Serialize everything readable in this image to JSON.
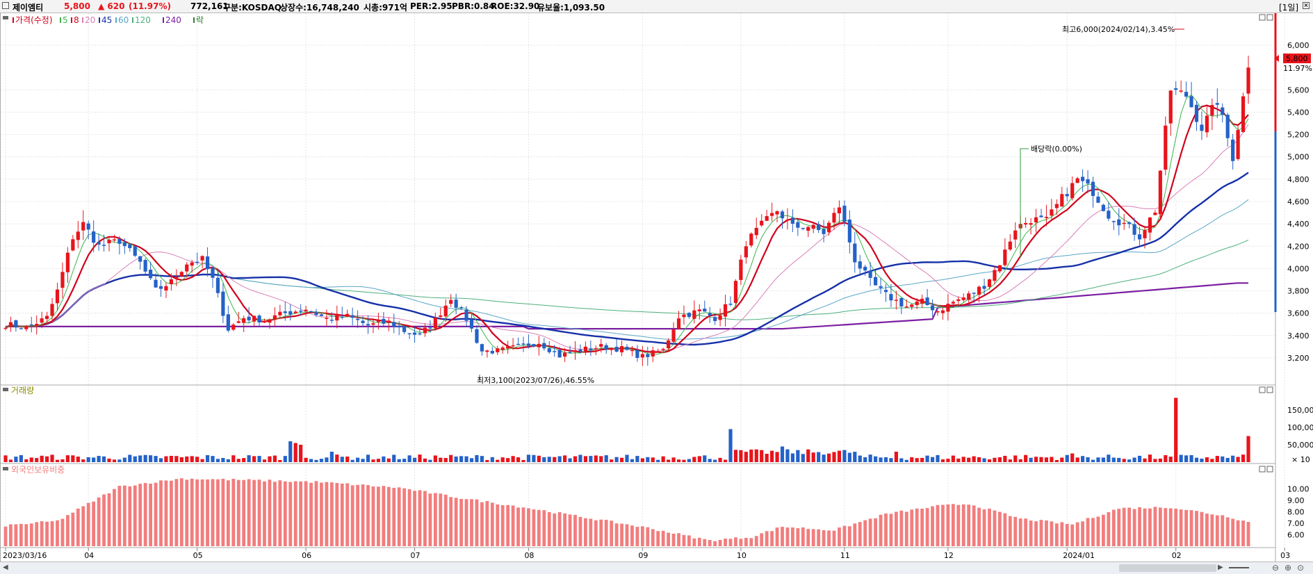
{
  "header": {
    "stock_name": "제이엠티",
    "price": "5,800",
    "change": "▲ 620",
    "change_pct": "(11.97%)",
    "volume": "772,161",
    "market": "구분:KOSDAQ",
    "shares": "상장수:16,748,240",
    "market_cap": "시총:971억",
    "per": "PER:2.95",
    "pbr": "PBR:0.84",
    "roe": "ROE:32.90",
    "reserve": "유보율:1,093.50",
    "period": "[1일]"
  },
  "legends": {
    "price": [
      {
        "label": "가격(수정)",
        "color": "#d0021b"
      },
      {
        "label": "5",
        "color": "#39b54a"
      },
      {
        "label": "8",
        "color": "#d0021b"
      },
      {
        "label": "20",
        "color": "#d97fb8"
      },
      {
        "label": "45",
        "color": "#1530a8"
      },
      {
        "label": "60",
        "color": "#5aa6c8"
      },
      {
        "label": "120",
        "color": "#4caf7d"
      },
      {
        "label": "240",
        "color": "#7b1fa2"
      },
      {
        "label": "락",
        "color": "#2e7d32"
      }
    ],
    "volume": "거래량",
    "foreign": "외국인보유비중"
  },
  "annotations": {
    "high": "최고6,000(2024/02/14),3.45%",
    "low": "최저3,100(2023/07/26),46.55%",
    "dividend": "배당락(0.00%)",
    "last_price": "5,800",
    "last_pct": "11.97%",
    "volume_unit": "× 10"
  },
  "colors": {
    "up": "#e8141c",
    "down": "#2462c8",
    "foreign": "#f27d7d"
  },
  "chart_data": [
    {
      "type": "candlestick",
      "name": "price",
      "ylim": [
        3050,
        6150
      ],
      "y_ticks": [
        "3,200",
        "3,400",
        "3,600",
        "3,800",
        "4,000",
        "4,200",
        "4,400",
        "4,600",
        "4,800",
        "5,000",
        "5,200",
        "5,400",
        "5,600",
        "6,000"
      ],
      "y_tick_values": [
        3200,
        3400,
        3600,
        3800,
        4000,
        4200,
        4400,
        4600,
        4800,
        5000,
        5200,
        5400,
        5600,
        6000
      ],
      "x_labels": [
        "2023/03/16",
        "04",
        "05",
        "06",
        "07",
        "08",
        "09",
        "10",
        "11",
        "12",
        "2024/01",
        "02",
        "03"
      ],
      "x_label_index": [
        0,
        16,
        37,
        58,
        79,
        101,
        123,
        142,
        162,
        182,
        205,
        226,
        247
      ],
      "close_anchors": [
        [
          0,
          3500
        ],
        [
          4,
          3470
        ],
        [
          8,
          3560
        ],
        [
          10,
          3800
        ],
        [
          13,
          4280
        ],
        [
          15,
          4400
        ],
        [
          18,
          4200
        ],
        [
          22,
          4250
        ],
        [
          26,
          4050
        ],
        [
          29,
          3800
        ],
        [
          32,
          3880
        ],
        [
          35,
          4050
        ],
        [
          38,
          4080
        ],
        [
          40,
          3900
        ],
        [
          43,
          3460
        ],
        [
          46,
          3560
        ],
        [
          50,
          3540
        ],
        [
          54,
          3600
        ],
        [
          58,
          3640
        ],
        [
          62,
          3550
        ],
        [
          66,
          3570
        ],
        [
          70,
          3490
        ],
        [
          74,
          3520
        ],
        [
          77,
          3440
        ],
        [
          80,
          3400
        ],
        [
          83,
          3540
        ],
        [
          86,
          3740
        ],
        [
          89,
          3550
        ],
        [
          92,
          3260
        ],
        [
          95,
          3260
        ],
        [
          99,
          3300
        ],
        [
          103,
          3340
        ],
        [
          107,
          3220
        ],
        [
          111,
          3270
        ],
        [
          115,
          3300
        ],
        [
          119,
          3280
        ],
        [
          123,
          3210
        ],
        [
          127,
          3270
        ],
        [
          130,
          3570
        ],
        [
          134,
          3620
        ],
        [
          137,
          3560
        ],
        [
          140,
          3700
        ],
        [
          143,
          4230
        ],
        [
          146,
          4390
        ],
        [
          149,
          4520
        ],
        [
          152,
          4370
        ],
        [
          155,
          4380
        ],
        [
          158,
          4320
        ],
        [
          161,
          4560
        ],
        [
          164,
          4080
        ],
        [
          167,
          3880
        ],
        [
          170,
          3760
        ],
        [
          174,
          3660
        ],
        [
          177,
          3700
        ],
        [
          180,
          3620
        ],
        [
          183,
          3700
        ],
        [
          186,
          3760
        ],
        [
          189,
          3850
        ],
        [
          192,
          4050
        ],
        [
          195,
          4360
        ],
        [
          198,
          4440
        ],
        [
          201,
          4430
        ],
        [
          204,
          4630
        ],
        [
          207,
          4800
        ],
        [
          210,
          4690
        ],
        [
          213,
          4480
        ],
        [
          216,
          4400
        ],
        [
          219,
          4290
        ],
        [
          222,
          4520
        ],
        [
          225,
          5600
        ],
        [
          228,
          5550
        ],
        [
          231,
          5260
        ],
        [
          234,
          5500
        ],
        [
          237,
          5000
        ],
        [
          240,
          5800
        ]
      ],
      "last_close": 5800,
      "high": 6000,
      "low": 3100
    },
    {
      "type": "bar",
      "name": "volume",
      "y_ticks": [
        "50,000",
        "100,000",
        "150,000"
      ],
      "y_tick_values": [
        50000,
        100000,
        150000
      ],
      "ylim": [
        0,
        200000
      ],
      "spikes": [
        [
          55,
          60000
        ],
        [
          56,
          55000
        ],
        [
          57,
          50000
        ],
        [
          63,
          30000
        ],
        [
          140,
          95000
        ],
        [
          150,
          45000
        ],
        [
          172,
          30000
        ],
        [
          240,
          75000
        ],
        [
          226,
          185000
        ],
        [
          206,
          25000
        ]
      ]
    },
    {
      "type": "bar",
      "name": "foreign_ownership",
      "y_ticks": [
        "6.00",
        "7.00",
        "8.00",
        "9.00",
        "10.00"
      ],
      "y_tick_values": [
        6,
        7,
        8,
        9,
        10
      ],
      "ylim": [
        5.0,
        11.0
      ],
      "anchors": [
        [
          0,
          6.8
        ],
        [
          10,
          7.2
        ],
        [
          16,
          8.7
        ],
        [
          22,
          10.2
        ],
        [
          34,
          10.9
        ],
        [
          44,
          10.8
        ],
        [
          60,
          10.6
        ],
        [
          76,
          10.1
        ],
        [
          88,
          9.2
        ],
        [
          100,
          8.4
        ],
        [
          112,
          7.5
        ],
        [
          124,
          6.6
        ],
        [
          136,
          5.5
        ],
        [
          144,
          5.8
        ],
        [
          150,
          6.7
        ],
        [
          160,
          6.4
        ],
        [
          170,
          7.8
        ],
        [
          180,
          8.5
        ],
        [
          186,
          8.7
        ],
        [
          196,
          7.4
        ],
        [
          206,
          6.9
        ],
        [
          215,
          8.3
        ],
        [
          225,
          8.4
        ],
        [
          236,
          7.6
        ],
        [
          240,
          7.1
        ]
      ]
    }
  ]
}
